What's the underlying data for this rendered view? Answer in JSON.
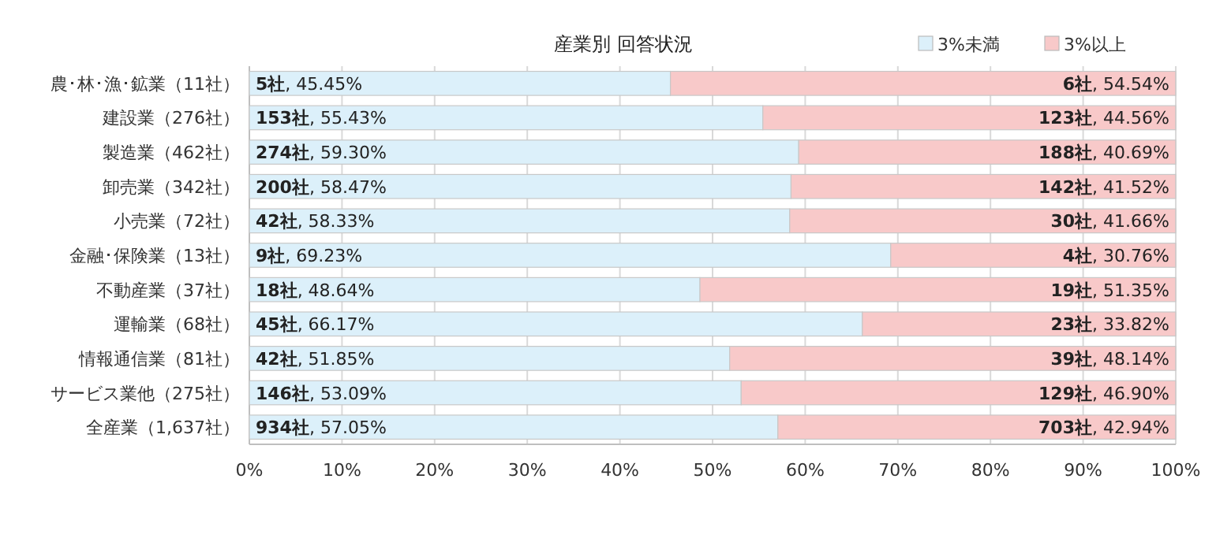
{
  "chart_data": {
    "type": "bar",
    "orientation": "horizontal",
    "stacked": true,
    "title": "産業別 回答状況",
    "categories": [
      "農･林･漁･鉱業（11社）",
      "建設業（276社）",
      "製造業（462社）",
      "卸売業（342社）",
      "小売業（72社）",
      "金融･保険業（13社）",
      "不動産業（37社）",
      "運輸業（68社）",
      "情報通信業（81社）",
      "サービス業他（275社）",
      "全産業（1,637社）"
    ],
    "series": [
      {
        "name": "3%未満",
        "color": "#dcf0fa",
        "values": [
          45.45,
          55.43,
          59.3,
          58.47,
          58.33,
          69.23,
          48.64,
          66.17,
          51.85,
          53.09,
          57.05
        ],
        "value_labels": [
          "5社, 45.45%",
          "153社, 55.43%",
          "274社, 59.30%",
          "200社, 58.47%",
          "42社, 58.33%",
          "9社, 69.23%",
          "18社, 48.64%",
          "45社, 66.17%",
          "42社, 51.85%",
          "146社, 53.09%",
          "934社, 57.05%"
        ]
      },
      {
        "name": "3%以上",
        "color": "#f8c9c9",
        "values": [
          54.54,
          44.56,
          40.69,
          41.52,
          41.66,
          30.76,
          51.35,
          33.82,
          48.14,
          46.9,
          42.94
        ],
        "value_labels": [
          "6社, 54.54%",
          "123社, 44.56%",
          "188社, 40.69%",
          "142社, 41.52%",
          "30社, 41.66%",
          "4社, 30.76%",
          "19社, 51.35%",
          "23社, 33.82%",
          "39社, 48.14%",
          "129社, 46.90%",
          "703社, 42.94%"
        ]
      }
    ],
    "xlim": [
      0,
      100
    ],
    "xticks": [
      {
        "value": 0,
        "label": "0%"
      },
      {
        "value": 10,
        "label": "10%"
      },
      {
        "value": 20,
        "label": "20%"
      },
      {
        "value": 30,
        "label": "30%"
      },
      {
        "value": 40,
        "label": "40%"
      },
      {
        "value": 50,
        "label": "50%"
      },
      {
        "value": 60,
        "label": "60%"
      },
      {
        "value": 70,
        "label": "70%"
      },
      {
        "value": 80,
        "label": "80%"
      },
      {
        "value": 90,
        "label": "90%"
      },
      {
        "value": 100,
        "label": "100%"
      }
    ],
    "grid": "x",
    "legend": "top right"
  }
}
